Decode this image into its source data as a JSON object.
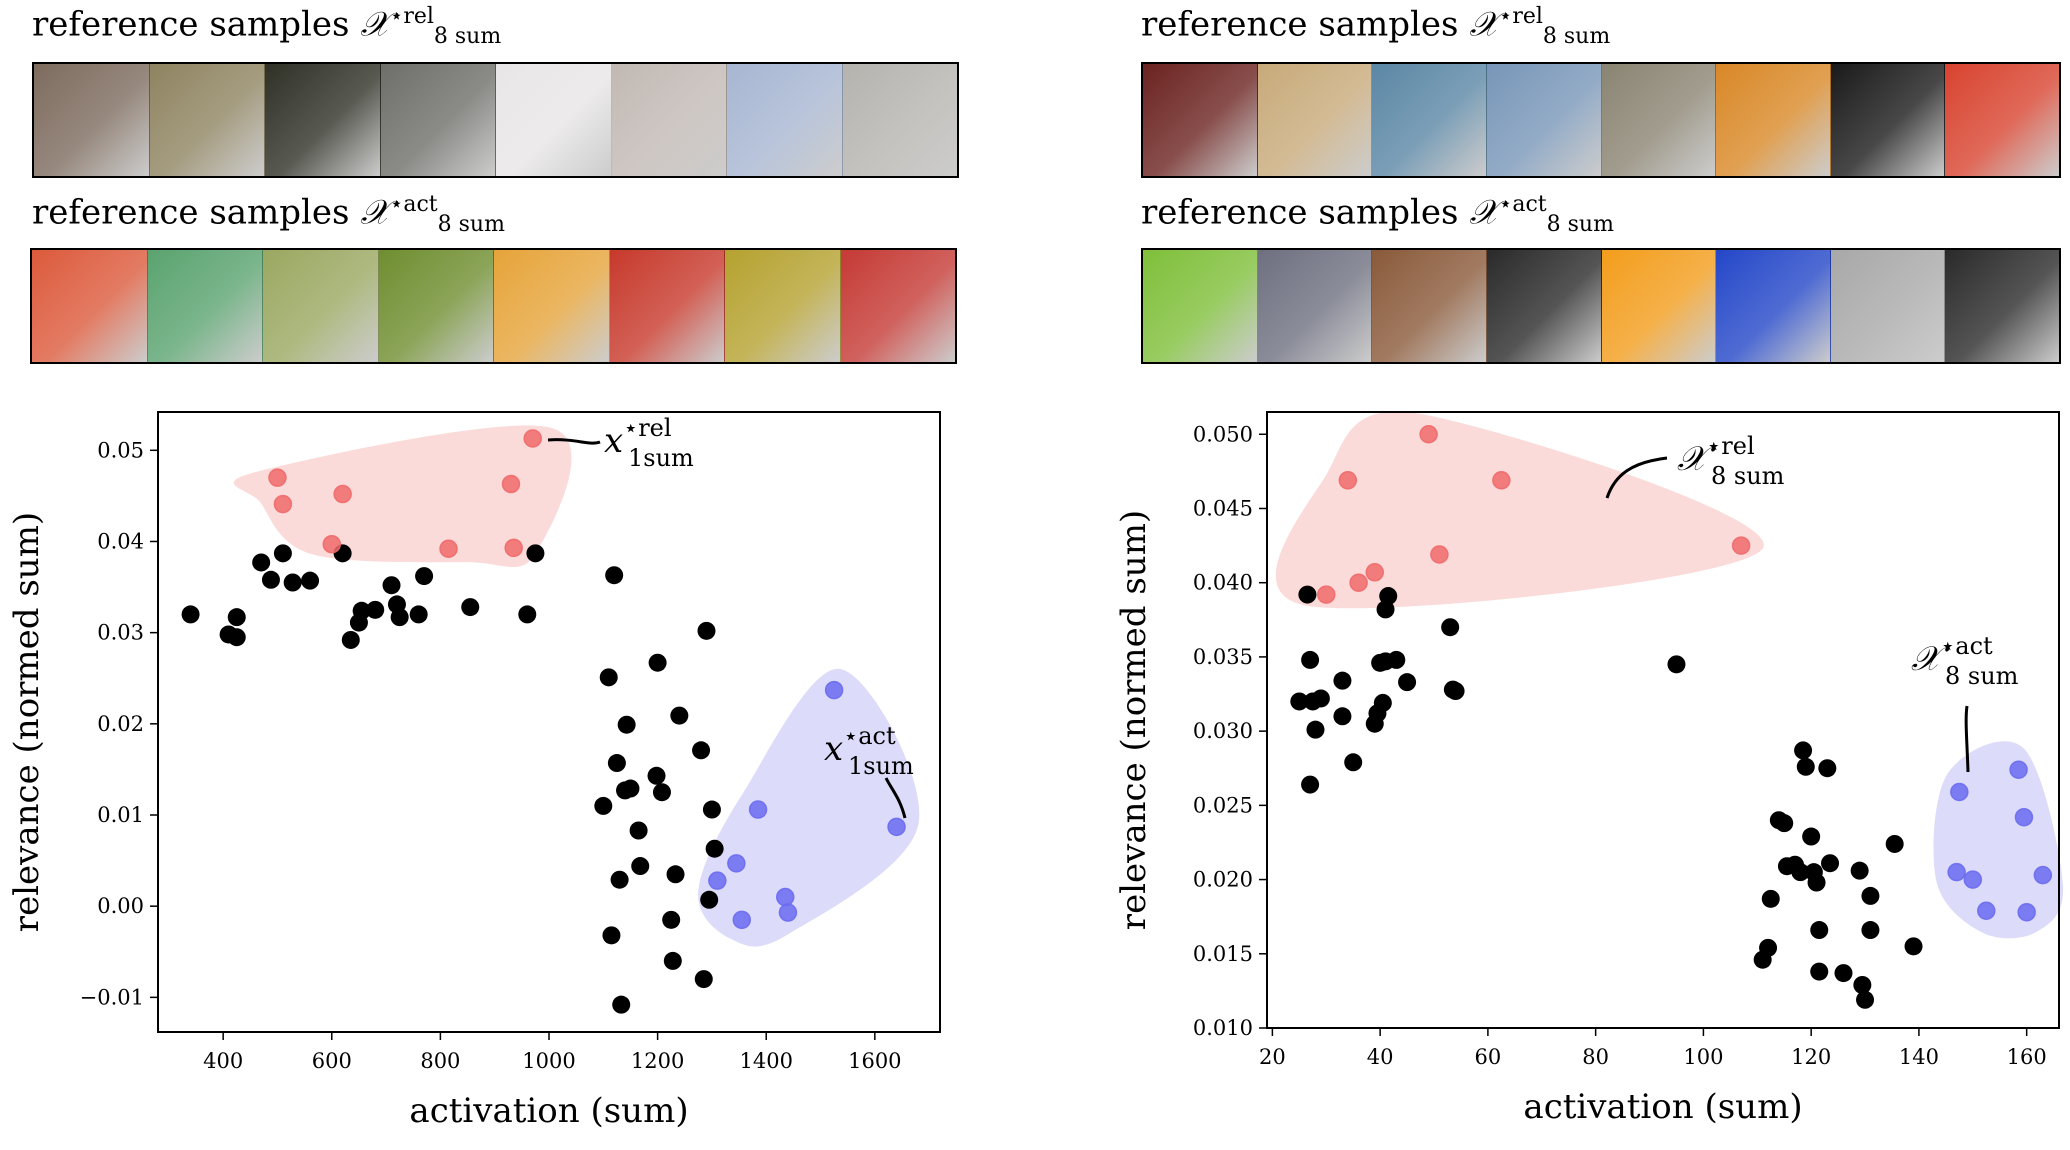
{
  "left_panel": {
    "strip1_label": "reference samples",
    "strip1_symbol": "𝒳",
    "strip1_sup": "⋆rel",
    "strip1_sub": "8 sum",
    "strip1_thumbs": [
      "#7d6b5e",
      "#8f8461",
      "#2f3026",
      "#6e6e6a",
      "#e8e6e6",
      "#c2b9b4",
      "#a7b6d2",
      "#b5b3ae"
    ],
    "strip2_label": "reference samples",
    "strip2_symbol": "𝒳",
    "strip2_sup": "⋆act",
    "strip2_sub": "8 sum",
    "strip2_thumbs": [
      "#dc5a3c",
      "#5aa36f",
      "#9aa861",
      "#6f8e30",
      "#e6a43a",
      "#c7392c",
      "#b5a230",
      "#c53a35"
    ]
  },
  "right_panel": {
    "strip1_label": "reference samples",
    "strip1_symbol": "𝒳",
    "strip1_sup": "⋆rel",
    "strip1_sub": "8 sum",
    "strip1_thumbs": [
      "#6b2320",
      "#c8aa7a",
      "#5b87a5",
      "#7896b8",
      "#8a8472",
      "#d98827",
      "#1a1a1a",
      "#d8432f"
    ],
    "strip2_label": "reference samples",
    "strip2_symbol": "𝒳",
    "strip2_sup": "⋆act",
    "strip2_sub": "8 sum",
    "strip2_thumbs": [
      "#7fbf3a",
      "#6e7080",
      "#8a5a3a",
      "#2a2a2a",
      "#f39d1c",
      "#2447c8",
      "#a8a8a8",
      "#2a2a2a"
    ]
  },
  "chart_data": [
    {
      "type": "scatter",
      "xlabel": "activation (sum)",
      "ylabel": "relevance (normed sum)",
      "xlim": [
        280,
        1720
      ],
      "ylim": [
        -0.0138,
        0.0542
      ],
      "xticks": [
        400,
        600,
        800,
        1000,
        1200,
        1400,
        1600
      ],
      "xtick_labels": [
        "400",
        "600",
        "800",
        "1000",
        "1200",
        "1400",
        "1600"
      ],
      "yticks": [
        -0.01,
        0.0,
        0.01,
        0.02,
        0.03,
        0.04,
        0.05
      ],
      "ytick_labels": [
        "−0.01",
        "0.00",
        "0.01",
        "0.02",
        "0.03",
        "0.04",
        "0.05"
      ],
      "colors": {
        "default": "#000000",
        "rel": "#f06a6a",
        "act": "#6b6bf0",
        "rel_region": "#fbdada",
        "act_region": "#dcdcfa"
      },
      "series": [
        {
          "group": "default",
          "points": [
            [
              340,
              0.032
            ],
            [
              410,
              0.0298
            ],
            [
              425,
              0.0317
            ],
            [
              425,
              0.0295
            ],
            [
              470,
              0.0377
            ],
            [
              488,
              0.0358
            ],
            [
              510,
              0.0387
            ],
            [
              528,
              0.0355
            ],
            [
              560,
              0.0357
            ],
            [
              620,
              0.0387
            ],
            [
              635,
              0.0292
            ],
            [
              650,
              0.0311
            ],
            [
              655,
              0.0324
            ],
            [
              680,
              0.0325
            ],
            [
              710,
              0.0352
            ],
            [
              720,
              0.0331
            ],
            [
              725,
              0.0317
            ],
            [
              760,
              0.032
            ],
            [
              770,
              0.0362
            ],
            [
              855,
              0.0328
            ],
            [
              960,
              0.032
            ],
            [
              975,
              0.0387
            ],
            [
              1100,
              0.011
            ],
            [
              1110,
              0.0251
            ],
            [
              1115,
              -0.0032
            ],
            [
              1120,
              0.0363
            ],
            [
              1125,
              0.0157
            ],
            [
              1130,
              0.0029
            ],
            [
              1133,
              -0.0108
            ],
            [
              1140,
              0.0127
            ],
            [
              1143,
              0.0199
            ],
            [
              1150,
              0.0129
            ],
            [
              1165,
              0.0083
            ],
            [
              1168,
              0.0044
            ],
            [
              1198,
              0.0143
            ],
            [
              1200,
              0.0267
            ],
            [
              1208,
              0.0125
            ],
            [
              1225,
              -0.0015
            ],
            [
              1228,
              -0.006
            ],
            [
              1233,
              0.0035
            ],
            [
              1240,
              0.0209
            ],
            [
              1280,
              0.0171
            ],
            [
              1285,
              -0.008
            ],
            [
              1290,
              0.0302
            ],
            [
              1295,
              0.0007
            ],
            [
              1300,
              0.0106
            ],
            [
              1305,
              0.0063
            ]
          ]
        },
        {
          "group": "rel",
          "points": [
            [
              500,
              0.047
            ],
            [
              510,
              0.0441
            ],
            [
              620,
              0.0452
            ],
            [
              600,
              0.0397
            ],
            [
              815,
              0.0392
            ],
            [
              930,
              0.0463
            ],
            [
              935,
              0.0393
            ],
            [
              970,
              0.0513
            ]
          ]
        },
        {
          "group": "act",
          "points": [
            [
              1310,
              0.0028
            ],
            [
              1345,
              0.0047
            ],
            [
              1355,
              -0.0015
            ],
            [
              1385,
              0.0106
            ],
            [
              1435,
              0.001
            ],
            [
              1440,
              -0.0007
            ],
            [
              1525,
              0.0237
            ],
            [
              1640,
              0.0087
            ]
          ]
        }
      ],
      "annotations": [
        {
          "symbol": "x",
          "sup": "⋆rel",
          "sub": "1sum"
        },
        {
          "symbol": "x",
          "sup": "⋆act",
          "sub": "1sum"
        }
      ]
    },
    {
      "type": "scatter",
      "xlabel": "activation (sum)",
      "ylabel": "relevance (normed sum)",
      "xlim": [
        19,
        166
      ],
      "ylim": [
        0.01,
        0.0515
      ],
      "xticks": [
        20,
        40,
        60,
        80,
        100,
        120,
        140,
        160
      ],
      "xtick_labels": [
        "20",
        "40",
        "60",
        "80",
        "100",
        "120",
        "140",
        "160"
      ],
      "yticks": [
        0.01,
        0.015,
        0.02,
        0.025,
        0.03,
        0.035,
        0.04,
        0.045,
        0.05
      ],
      "ytick_labels": [
        "0.010",
        "0.015",
        "0.020",
        "0.025",
        "0.030",
        "0.035",
        "0.040",
        "0.045",
        "0.050"
      ],
      "colors": {
        "default": "#000000",
        "rel": "#f06a6a",
        "act": "#6b6bf0",
        "rel_region": "#fbdada",
        "act_region": "#dcdcfa"
      },
      "series": [
        {
          "group": "default",
          "points": [
            [
              25,
              0.032
            ],
            [
              26.5,
              0.0392
            ],
            [
              27,
              0.0348
            ],
            [
              27,
              0.0264
            ],
            [
              27.5,
              0.032
            ],
            [
              28,
              0.0301
            ],
            [
              29,
              0.0322
            ],
            [
              33,
              0.0334
            ],
            [
              33,
              0.031
            ],
            [
              35,
              0.0279
            ],
            [
              39,
              0.0305
            ],
            [
              39.5,
              0.0312
            ],
            [
              40,
              0.0346
            ],
            [
              40.5,
              0.0319
            ],
            [
              41,
              0.0382
            ],
            [
              41.5,
              0.0391
            ],
            [
              41,
              0.0347
            ],
            [
              43,
              0.0348
            ],
            [
              45,
              0.0333
            ],
            [
              53,
              0.037
            ],
            [
              53.5,
              0.0328
            ],
            [
              54,
              0.0327
            ],
            [
              95,
              0.0345
            ],
            [
              111,
              0.0146
            ],
            [
              112,
              0.0154
            ],
            [
              112.5,
              0.0187
            ],
            [
              114,
              0.024
            ],
            [
              115,
              0.0238
            ],
            [
              115.5,
              0.0209
            ],
            [
              117,
              0.021
            ],
            [
              118,
              0.0205
            ],
            [
              118.5,
              0.0287
            ],
            [
              119,
              0.0276
            ],
            [
              120,
              0.0229
            ],
            [
              120.5,
              0.0205
            ],
            [
              121,
              0.0198
            ],
            [
              121.5,
              0.0166
            ],
            [
              121.5,
              0.0138
            ],
            [
              123,
              0.0275
            ],
            [
              123.5,
              0.0211
            ],
            [
              126,
              0.0137
            ],
            [
              129,
              0.0206
            ],
            [
              129.5,
              0.0129
            ],
            [
              130,
              0.0119
            ],
            [
              131,
              0.0166
            ],
            [
              131,
              0.0189
            ],
            [
              135.5,
              0.0224
            ],
            [
              139,
              0.0155
            ]
          ]
        },
        {
          "group": "rel",
          "points": [
            [
              30,
              0.0392
            ],
            [
              34,
              0.0469
            ],
            [
              36,
              0.04
            ],
            [
              39,
              0.0407
            ],
            [
              49,
              0.05
            ],
            [
              51,
              0.0419
            ],
            [
              62.5,
              0.0469
            ],
            [
              107,
              0.0425
            ]
          ]
        },
        {
          "group": "act",
          "points": [
            [
              147.5,
              0.0259
            ],
            [
              147,
              0.0205
            ],
            [
              150,
              0.02
            ],
            [
              152.5,
              0.0179
            ],
            [
              158.5,
              0.0274
            ],
            [
              159.5,
              0.0242
            ],
            [
              160,
              0.0178
            ],
            [
              163,
              0.0203
            ]
          ]
        }
      ],
      "annotations": [
        {
          "symbol": "𝒳",
          "sup": "⋆rel",
          "sub": "8 sum"
        },
        {
          "symbol": "𝒳",
          "sup": "⋆act",
          "sub": "8 sum"
        }
      ]
    }
  ]
}
